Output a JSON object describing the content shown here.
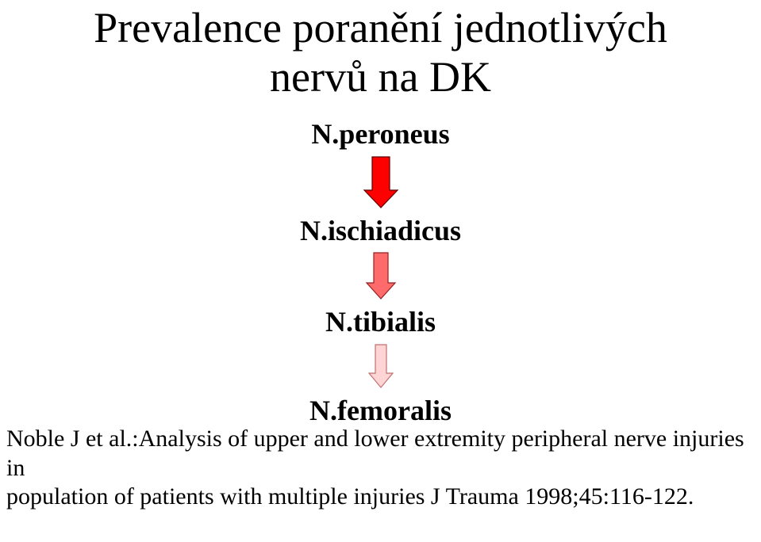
{
  "title": {
    "line1": "Prevalence poranění jednotlivých",
    "line2": "nervů na DK",
    "font_size": 54,
    "color": "#000000"
  },
  "nerves": {
    "items": [
      {
        "label": "N.peroneus"
      },
      {
        "label": "N.ischiadicus"
      },
      {
        "label": "N.tibialis"
      },
      {
        "label": "N.femoralis"
      }
    ],
    "label_font_size": 36,
    "label_font_weight": "bold",
    "label_color": "#000000"
  },
  "arrows": [
    {
      "fill": "#ff0000",
      "stroke": "#5b0101",
      "stroke_width": 1.2,
      "shaft_width": 22,
      "head_width": 42,
      "head_height": 22,
      "total_height": 64
    },
    {
      "fill": "#ff6b6b",
      "stroke": "#931f1f",
      "stroke_width": 1.2,
      "shaft_width": 18,
      "head_width": 36,
      "head_height": 20,
      "total_height": 58
    },
    {
      "fill": "#ffd4d4",
      "stroke": "#bf7070",
      "stroke_width": 1.2,
      "shaft_width": 14,
      "head_width": 30,
      "head_height": 18,
      "total_height": 54
    }
  ],
  "citation": {
    "line1": "Noble J et al.:Analysis of upper and lower extremity peripheral nerve injuries in",
    "line2": "population of patients with multiple injuries J Trauma 1998;45:116-122.",
    "font_size": 30,
    "color": "#000000"
  },
  "background_color": "#ffffff"
}
